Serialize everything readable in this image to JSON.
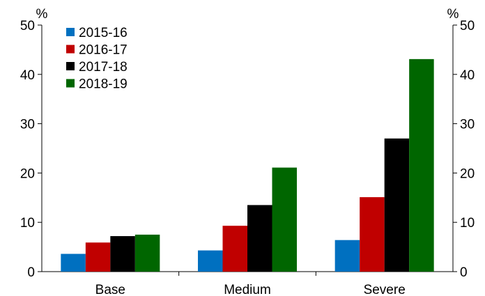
{
  "chart_data": {
    "type": "bar",
    "categories": [
      "Base",
      "Medium",
      "Severe"
    ],
    "series": [
      {
        "name": "2015-16",
        "color": "#0070C0",
        "values": [
          3.6,
          4.3,
          6.4
        ]
      },
      {
        "name": "2016-17",
        "color": "#C00000",
        "values": [
          5.9,
          9.3,
          15.1
        ]
      },
      {
        "name": "2017-18",
        "color": "#000000",
        "values": [
          7.2,
          13.5,
          27.0
        ]
      },
      {
        "name": "2018-19",
        "color": "#006600",
        "values": [
          7.5,
          21.1,
          43.1
        ]
      }
    ],
    "ylim": [
      0,
      50
    ],
    "yticks": [
      0,
      10,
      20,
      30,
      40,
      50
    ],
    "left_unit": "%",
    "right_unit": "%",
    "legend_position": "top-left",
    "grid": false
  }
}
